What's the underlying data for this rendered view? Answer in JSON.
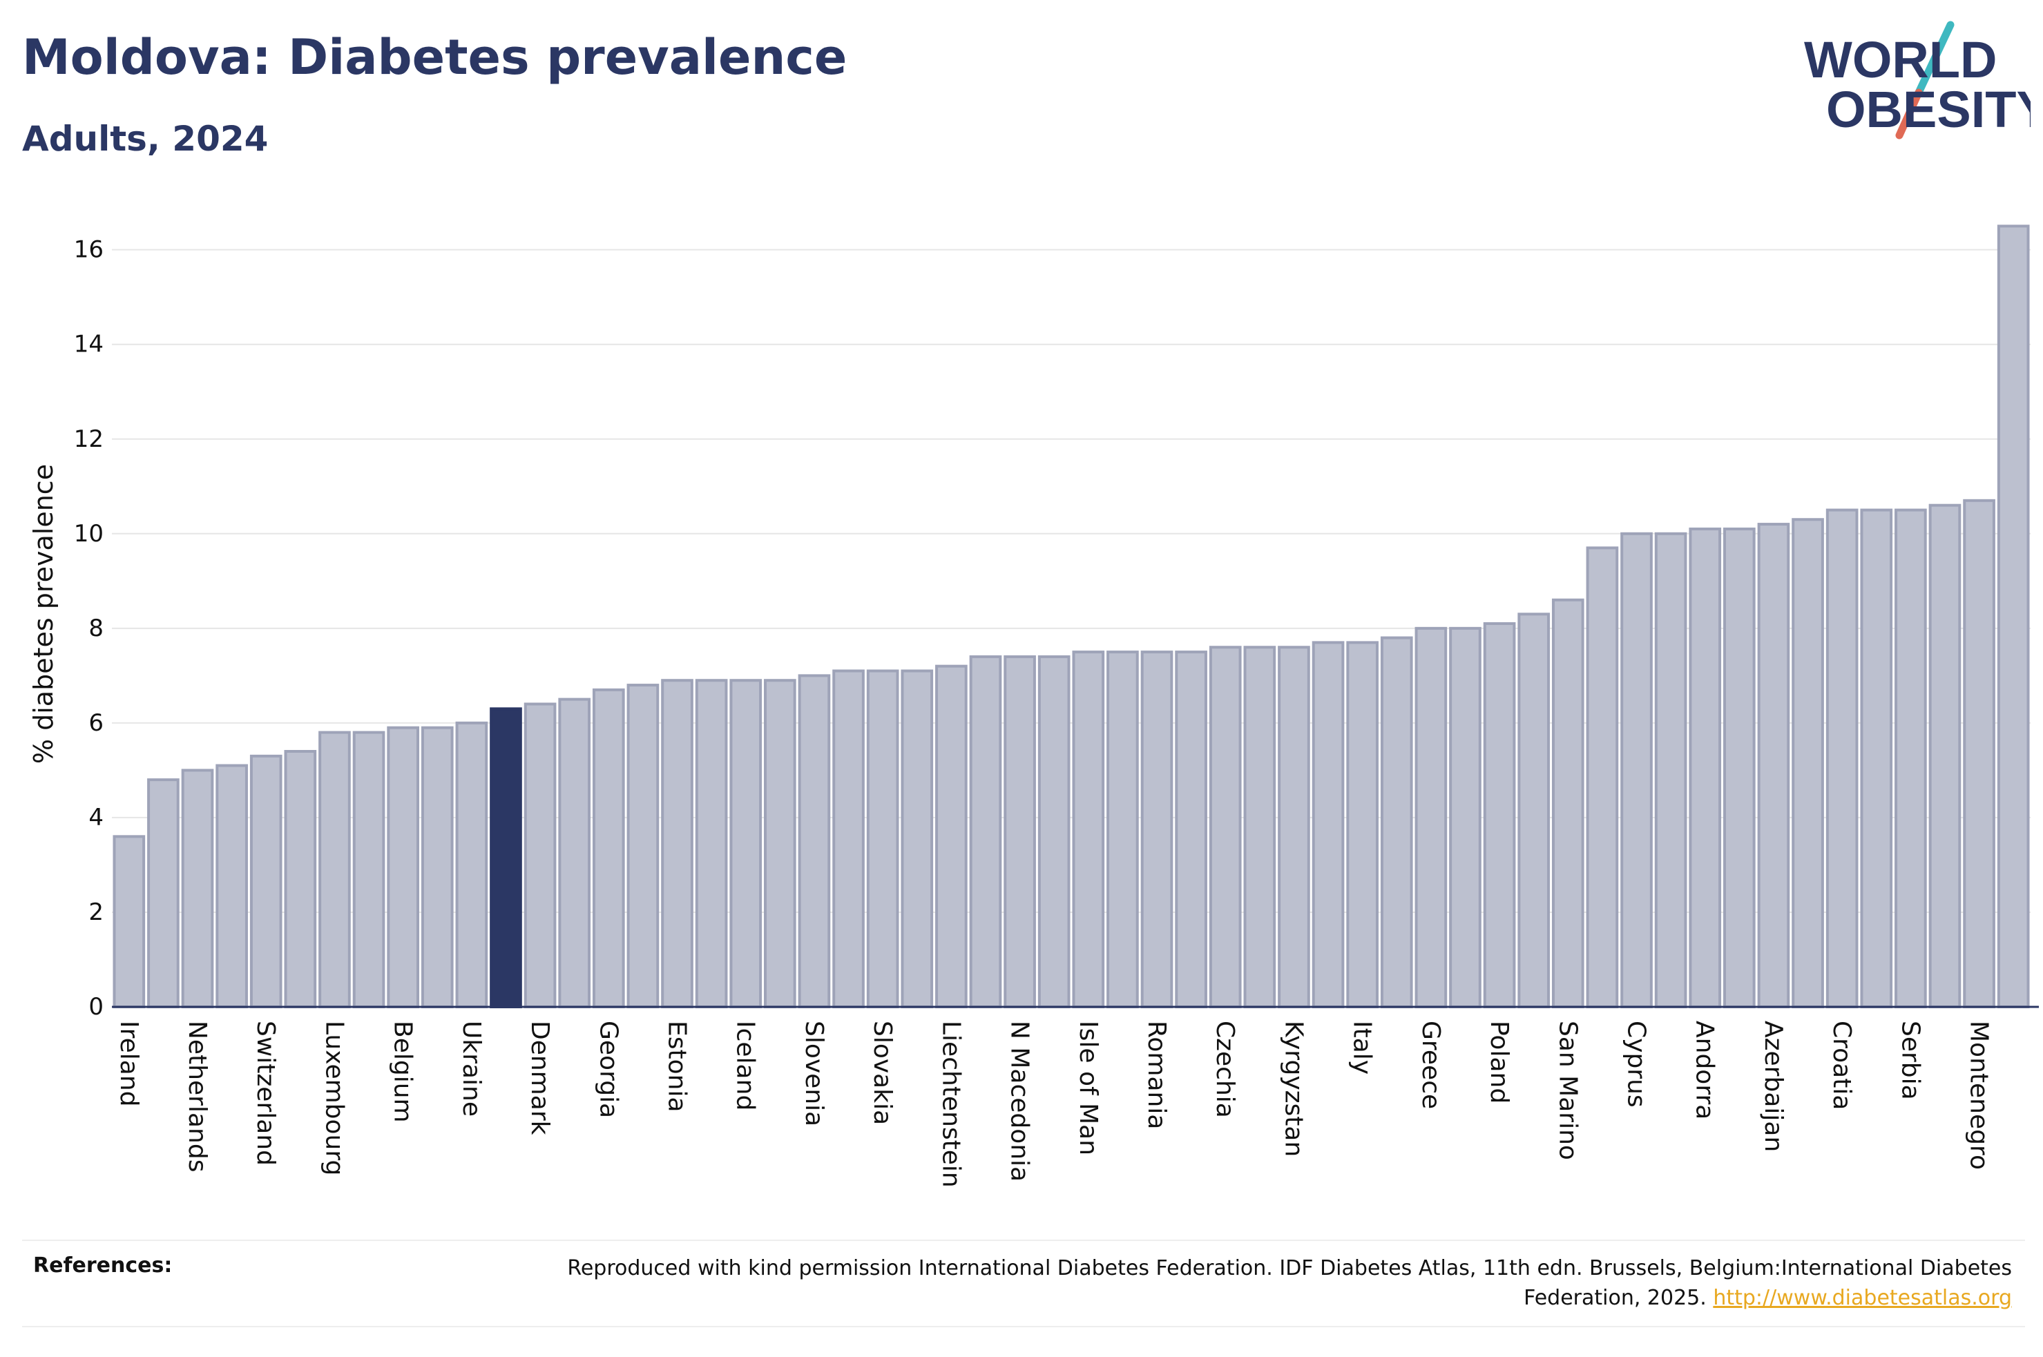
{
  "header": {
    "title": "Moldova: Diabetes prevalence",
    "subtitle": "Adults, 2024"
  },
  "logo": {
    "line1": "WORLD",
    "line2": "OBESITY",
    "accent_colors": [
      "#3fb8c0",
      "#e06a55"
    ],
    "text_color": "#2b3764"
  },
  "colors": {
    "bar": "#bcc0cf",
    "bar_outline": "#9ea3b8",
    "highlight": "#2b3764",
    "grid": "#e6e6e6",
    "axis": "#2b3764"
  },
  "chart_data": {
    "type": "bar",
    "ylabel": "% diabetes prevalence",
    "xlabel": "",
    "ylim": [
      0,
      16.9
    ],
    "yticks": [
      0,
      2,
      4,
      6,
      8,
      10,
      12,
      14,
      16
    ],
    "grid": true,
    "highlight_index": 11,
    "categories": [
      "Ireland",
      "",
      "Netherlands",
      "",
      "Switzerland",
      "",
      "Luxembourg",
      "",
      "Belgium",
      "",
      "Ukraine",
      "",
      "Denmark",
      "",
      "Georgia",
      "",
      "Estonia",
      "",
      "Iceland",
      "",
      "Slovenia",
      "",
      "Slovakia",
      "",
      "Liechtenstein",
      "",
      "N Macedonia",
      "",
      "Isle of Man",
      "",
      "Romania",
      "",
      "Czechia",
      "",
      "Kyrgyzstan",
      "",
      "Italy",
      "",
      "Greece",
      "",
      "Poland",
      "",
      "San Marino",
      "",
      "Cyprus",
      "",
      "Andorra",
      "",
      "Azerbaijan",
      "",
      "Croatia",
      "",
      "Serbia",
      "",
      "Montenegro",
      ""
    ],
    "values": [
      3.6,
      4.8,
      5.0,
      5.1,
      5.3,
      5.4,
      5.8,
      5.8,
      5.9,
      5.9,
      6.0,
      6.3,
      6.4,
      6.5,
      6.7,
      6.8,
      6.9,
      6.9,
      6.9,
      6.9,
      7.0,
      7.1,
      7.1,
      7.1,
      7.2,
      7.4,
      7.4,
      7.4,
      7.5,
      7.5,
      7.5,
      7.5,
      7.6,
      7.6,
      7.6,
      7.7,
      7.7,
      7.8,
      8.0,
      8.0,
      8.1,
      8.3,
      8.6,
      9.7,
      10.0,
      10.0,
      10.1,
      10.1,
      10.2,
      10.3,
      10.5,
      10.5,
      10.5,
      10.6,
      10.7,
      16.5
    ]
  },
  "footer": {
    "references_label": "References:",
    "references_text": "Reproduced with kind permission International Diabetes Federation. IDF Diabetes Atlas, 11th edn. Brussels, Belgium:International Diabetes Federation, 2025.",
    "link_text": "http://www.diabetesatlas.org"
  }
}
